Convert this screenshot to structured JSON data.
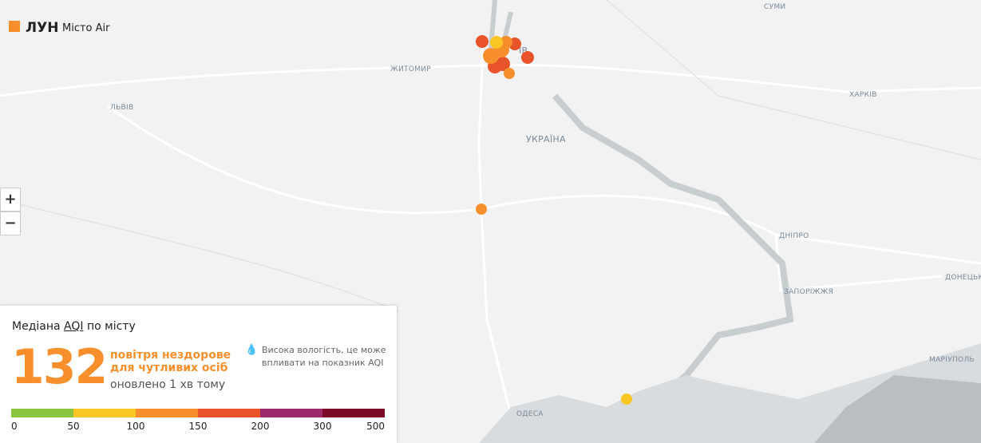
{
  "logo": {
    "brand": "ЛУН",
    "product": "Місто Air"
  },
  "map": {
    "labels": [
      "СУМИ",
      "ЖИТОМИР",
      "ЛЬВІВ",
      "УКРАЇНА",
      "ХАРКІВ",
      "ДНІПРО",
      "ЗАПОРІЖЖЯ",
      "ДОНЕЦЬК",
      "МАРІУПОЛЬ",
      "ОДЕСА",
      "ІВ"
    ]
  },
  "zoom": {
    "in": "+",
    "out": "−"
  },
  "panel": {
    "title_parts": [
      "Медіана",
      "AQI",
      "по місту"
    ],
    "aqi": "132",
    "status": "повітря нездорове для чутливих осіб",
    "updated": "оновлено 1 хв тому",
    "note": "Висока вологість, це може впливати на показник AQI",
    "scale": {
      "ticks": [
        "0",
        "50",
        "100",
        "150",
        "200",
        "300",
        "500"
      ],
      "colors": [
        "#8cc63f",
        "#f9c623",
        "#f7902c",
        "#e8532a",
        "#9c2a6b",
        "#7d0a26"
      ]
    }
  }
}
